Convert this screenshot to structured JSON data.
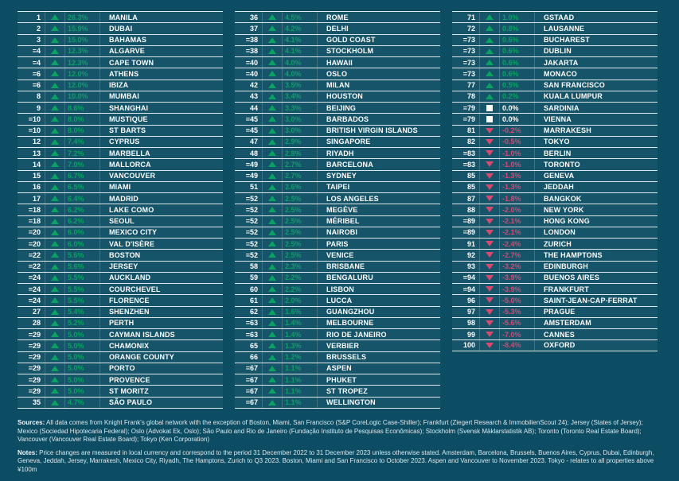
{
  "colors": {
    "background": "#0C4D64",
    "positive": "#0AA163",
    "negative": "#D8486F",
    "neutral": "#FFFFFF",
    "separator": "#E9F1F5",
    "text": "#FFFFFF"
  },
  "chart_data": {
    "type": "table",
    "layout": "three vertical ranked columns, ranks 1-100, each row: rank, direction icon, percent change, location",
    "column_groups": [
      {
        "entries": [
          {
            "rank": "1",
            "dir": "up",
            "pct": "26.3%",
            "city": "MANILA"
          },
          {
            "rank": "2",
            "dir": "up",
            "pct": "15.9%",
            "city": "DUBAI"
          },
          {
            "rank": "3",
            "dir": "up",
            "pct": "15.0%",
            "city": "BAHAMAS"
          },
          {
            "rank": "=4",
            "dir": "up",
            "pct": "12.3%",
            "city": "ALGARVE"
          },
          {
            "rank": "=4",
            "dir": "up",
            "pct": "12.3%",
            "city": "CAPE TOWN"
          },
          {
            "rank": "=6",
            "dir": "up",
            "pct": "12.0%",
            "city": "ATHENS"
          },
          {
            "rank": "=6",
            "dir": "up",
            "pct": "12.0%",
            "city": "IBIZA"
          },
          {
            "rank": "8",
            "dir": "up",
            "pct": "10.0%",
            "city": "MUMBAI"
          },
          {
            "rank": "9",
            "dir": "up",
            "pct": "8.6%",
            "city": "SHANGHAI"
          },
          {
            "rank": "=10",
            "dir": "up",
            "pct": "8.0%",
            "city": "MUSTIQUE"
          },
          {
            "rank": "=10",
            "dir": "up",
            "pct": "8.0%",
            "city": "ST BARTS"
          },
          {
            "rank": "12",
            "dir": "up",
            "pct": "7.4%",
            "city": "CYPRUS"
          },
          {
            "rank": "13",
            "dir": "up",
            "pct": "7.2%",
            "city": "MARBELLA"
          },
          {
            "rank": "14",
            "dir": "up",
            "pct": "7.0%",
            "city": "MALLORCA"
          },
          {
            "rank": "15",
            "dir": "up",
            "pct": "6.7%",
            "city": "VANCOUVER"
          },
          {
            "rank": "16",
            "dir": "up",
            "pct": "6.5%",
            "city": "MIAMI"
          },
          {
            "rank": "17",
            "dir": "up",
            "pct": "6.4%",
            "city": "MADRID"
          },
          {
            "rank": "=18",
            "dir": "up",
            "pct": "6.2%",
            "city": "LAKE COMO"
          },
          {
            "rank": "=18",
            "dir": "up",
            "pct": "6.2%",
            "city": "SEOUL"
          },
          {
            "rank": "=20",
            "dir": "up",
            "pct": "6.0%",
            "city": "MEXICO CITY"
          },
          {
            "rank": "=20",
            "dir": "up",
            "pct": "6.0%",
            "city": "VAL D'ISÈRE"
          },
          {
            "rank": "=22",
            "dir": "up",
            "pct": "5.6%",
            "city": "BOSTON"
          },
          {
            "rank": "=22",
            "dir": "up",
            "pct": "5.6%",
            "city": "JERSEY"
          },
          {
            "rank": "=24",
            "dir": "up",
            "pct": "5.5%",
            "city": "AUCKLAND"
          },
          {
            "rank": "=24",
            "dir": "up",
            "pct": "5.5%",
            "city": "COURCHEVEL"
          },
          {
            "rank": "=24",
            "dir": "up",
            "pct": "5.5%",
            "city": "FLORENCE"
          },
          {
            "rank": "27",
            "dir": "up",
            "pct": "5.4%",
            "city": "SHENZHEN"
          },
          {
            "rank": "28",
            "dir": "up",
            "pct": "5.2%",
            "city": "PERTH"
          },
          {
            "rank": "=29",
            "dir": "up",
            "pct": "5.0%",
            "city": "CAYMAN ISLANDS"
          },
          {
            "rank": "=29",
            "dir": "up",
            "pct": "5.0%",
            "city": "CHAMONIX"
          },
          {
            "rank": "=29",
            "dir": "up",
            "pct": "5.0%",
            "city": "ORANGE COUNTY"
          },
          {
            "rank": "=29",
            "dir": "up",
            "pct": "5.0%",
            "city": "PORTO"
          },
          {
            "rank": "=29",
            "dir": "up",
            "pct": "5.0%",
            "city": "PROVENCE"
          },
          {
            "rank": "=29",
            "dir": "up",
            "pct": "5.0%",
            "city": "ST MORITZ"
          },
          {
            "rank": "35",
            "dir": "up",
            "pct": "4.7%",
            "city": "SÃO PAULO"
          }
        ]
      },
      {
        "entries": [
          {
            "rank": "36",
            "dir": "up",
            "pct": "4.5%",
            "city": "ROME"
          },
          {
            "rank": "37",
            "dir": "up",
            "pct": "4.2%",
            "city": "DELHI"
          },
          {
            "rank": "=38",
            "dir": "up",
            "pct": "4.1%",
            "city": "GOLD COAST"
          },
          {
            "rank": "=38",
            "dir": "up",
            "pct": "4.1%",
            "city": "STOCKHOLM"
          },
          {
            "rank": "=40",
            "dir": "up",
            "pct": "4.0%",
            "city": "HAWAII"
          },
          {
            "rank": "=40",
            "dir": "up",
            "pct": "4.0%",
            "city": "OSLO"
          },
          {
            "rank": "42",
            "dir": "up",
            "pct": "3.5%",
            "city": "MILAN"
          },
          {
            "rank": "43",
            "dir": "up",
            "pct": "3.4%",
            "city": "HOUSTON"
          },
          {
            "rank": "44",
            "dir": "up",
            "pct": "3.3%",
            "city": "BEIJING"
          },
          {
            "rank": "=45",
            "dir": "up",
            "pct": "3.0%",
            "city": "BARBADOS"
          },
          {
            "rank": "=45",
            "dir": "up",
            "pct": "3.0%",
            "city": "BRITISH VIRGIN ISLANDS"
          },
          {
            "rank": "47",
            "dir": "up",
            "pct": "2.9%",
            "city": "SINGAPORE"
          },
          {
            "rank": "48",
            "dir": "up",
            "pct": "2.8%",
            "city": "RIYADH"
          },
          {
            "rank": "=49",
            "dir": "up",
            "pct": "2.7%",
            "city": "BARCELONA"
          },
          {
            "rank": "=49",
            "dir": "up",
            "pct": "2.7%",
            "city": "SYDNEY"
          },
          {
            "rank": "51",
            "dir": "up",
            "pct": "2.6%",
            "city": "TAIPEI"
          },
          {
            "rank": "=52",
            "dir": "up",
            "pct": "2.5%",
            "city": "LOS ANGELES"
          },
          {
            "rank": "=52",
            "dir": "up",
            "pct": "2.5%",
            "city": "MEGÈVE"
          },
          {
            "rank": "=52",
            "dir": "up",
            "pct": "2.5%",
            "city": "MÉRIBEL"
          },
          {
            "rank": "=52",
            "dir": "up",
            "pct": "2.5%",
            "city": "NAIROBI"
          },
          {
            "rank": "=52",
            "dir": "up",
            "pct": "2.5%",
            "city": "PARIS"
          },
          {
            "rank": "=52",
            "dir": "up",
            "pct": "2.5%",
            "city": "VENICE"
          },
          {
            "rank": "58",
            "dir": "up",
            "pct": "2.3%",
            "city": "BRISBANE"
          },
          {
            "rank": "59",
            "dir": "up",
            "pct": "2.2%",
            "city": "BENGALURU"
          },
          {
            "rank": "60",
            "dir": "up",
            "pct": "2.2%",
            "city": "LISBON"
          },
          {
            "rank": "61",
            "dir": "up",
            "pct": "2.0%",
            "city": "LUCCA"
          },
          {
            "rank": "62",
            "dir": "up",
            "pct": "1.6%",
            "city": "GUANGZHOU"
          },
          {
            "rank": "=63",
            "dir": "up",
            "pct": "1.4%",
            "city": "MELBOURNE"
          },
          {
            "rank": "=63",
            "dir": "up",
            "pct": "1.4%",
            "city": "RIO DE JANEIRO"
          },
          {
            "rank": "65",
            "dir": "up",
            "pct": "1.3%",
            "city": "VERBIER"
          },
          {
            "rank": "66",
            "dir": "up",
            "pct": "1.2%",
            "city": "BRUSSELS"
          },
          {
            "rank": "=67",
            "dir": "up",
            "pct": "1.1%",
            "city": "ASPEN"
          },
          {
            "rank": "=67",
            "dir": "up",
            "pct": "1.1%",
            "city": "PHUKET"
          },
          {
            "rank": "=67",
            "dir": "up",
            "pct": "1.1%",
            "city": "ST TROPEZ"
          },
          {
            "rank": "=67",
            "dir": "up",
            "pct": "1.1%",
            "city": "WELLINGTON"
          }
        ]
      },
      {
        "entries": [
          {
            "rank": "71",
            "dir": "up",
            "pct": "1.0%",
            "city": "GSTAAD"
          },
          {
            "rank": "72",
            "dir": "up",
            "pct": "0.8%",
            "city": "LAUSANNE"
          },
          {
            "rank": "=73",
            "dir": "up",
            "pct": "0.6%",
            "city": "BUCHAREST"
          },
          {
            "rank": "=73",
            "dir": "up",
            "pct": "0.6%",
            "city": "DUBLIN"
          },
          {
            "rank": "=73",
            "dir": "up",
            "pct": "0.6%",
            "city": "JAKARTA"
          },
          {
            "rank": "=73",
            "dir": "up",
            "pct": "0.6%",
            "city": "MONACO"
          },
          {
            "rank": "77",
            "dir": "up",
            "pct": "0.5%",
            "city": "SAN FRANCISCO"
          },
          {
            "rank": "78",
            "dir": "up",
            "pct": "0.2%",
            "city": "KUALA LUMPUR"
          },
          {
            "rank": "=79",
            "dir": "flat",
            "pct": "0.0%",
            "city": "SARDINIA"
          },
          {
            "rank": "=79",
            "dir": "flat",
            "pct": "0.0%",
            "city": "VIENNA"
          },
          {
            "rank": "81",
            "dir": "down",
            "pct": "-0.2%",
            "city": "MARRAKESH"
          },
          {
            "rank": "82",
            "dir": "down",
            "pct": "-0.5%",
            "city": "TOKYO"
          },
          {
            "rank": "=83",
            "dir": "down",
            "pct": "-1.0%",
            "city": "BERLIN"
          },
          {
            "rank": "=83",
            "dir": "down",
            "pct": "-1.0%",
            "city": "TORONTO"
          },
          {
            "rank": "85",
            "dir": "down",
            "pct": "-1.3%",
            "city": "GENEVA"
          },
          {
            "rank": "85",
            "dir": "down",
            "pct": "-1.3%",
            "city": "JEDDAH"
          },
          {
            "rank": "87",
            "dir": "down",
            "pct": "-1.8%",
            "city": "BANGKOK"
          },
          {
            "rank": "88",
            "dir": "down",
            "pct": "-2.0%",
            "city": "NEW YORK"
          },
          {
            "rank": "=89",
            "dir": "down",
            "pct": "-2.1%",
            "city": "HONG KONG"
          },
          {
            "rank": "=89",
            "dir": "down",
            "pct": "-2.1%",
            "city": "LONDON"
          },
          {
            "rank": "91",
            "dir": "down",
            "pct": "-2.4%",
            "city": "ZURICH"
          },
          {
            "rank": "92",
            "dir": "down",
            "pct": "-2.7%",
            "city": "THE HAMPTONS"
          },
          {
            "rank": "93",
            "dir": "down",
            "pct": "-3.2%",
            "city": "EDINBURGH"
          },
          {
            "rank": "=94",
            "dir": "down",
            "pct": "-3.9%",
            "city": "BUENOS AIRES"
          },
          {
            "rank": "=94",
            "dir": "down",
            "pct": "-3.9%",
            "city": "FRANKFURT"
          },
          {
            "rank": "96",
            "dir": "down",
            "pct": "-5.0%",
            "city": "SAINT-JEAN-CAP-FERRAT"
          },
          {
            "rank": "97",
            "dir": "down",
            "pct": "-5.3%",
            "city": "PRAGUE"
          },
          {
            "rank": "98",
            "dir": "down",
            "pct": "-5.6%",
            "city": "AMSTERDAM"
          },
          {
            "rank": "99",
            "dir": "down",
            "pct": "-7.0%",
            "city": "CANNES"
          },
          {
            "rank": "100",
            "dir": "down",
            "pct": "-8.4%",
            "city": "OXFORD"
          }
        ]
      }
    ]
  },
  "footer": {
    "sources_label": "Sources:",
    "sources_text": " All data comes from Knight Frank's global network with the exception of Boston, Miami, San Francisco (S&P CoreLogic Case-Shiller); Frankfurt (Ziegert Research & ImmobilienScout 24); Jersey (States of Jersey); Mexico (Sociedad Hipotecaria Federal); Oslo (Advokat Ek, Oslo); São Paulo and Rio de Janeiro (Fundação Instituto de Pesquisas Econômicas); Stockholm (Svensk Mäklarstatistik AB); Toronto (Toronto Real Estate Board); Vancouver (Vancouver Real Estate Board); Tokyo (Ken Corporation)",
    "notes_label": "Notes:",
    "notes_text": " Price changes are measured in local currency and correspond to the period 31 December 2022 to 31 December 2023 unless otherwise stated. Amsterdam, Barcelona, Brussels, Buenos Aires, Cyprus, Dubai, Edinburgh, Geneva, Jeddah, Jersey, Marrakesh, Mexico City, Riyadh, The Hamptons, Zurich to Q3 2023. Boston, Miami and San Francisco to October 2023. Aspen and Vancouver to November 2023. Tokyo - relates to all properties above ¥100m"
  }
}
